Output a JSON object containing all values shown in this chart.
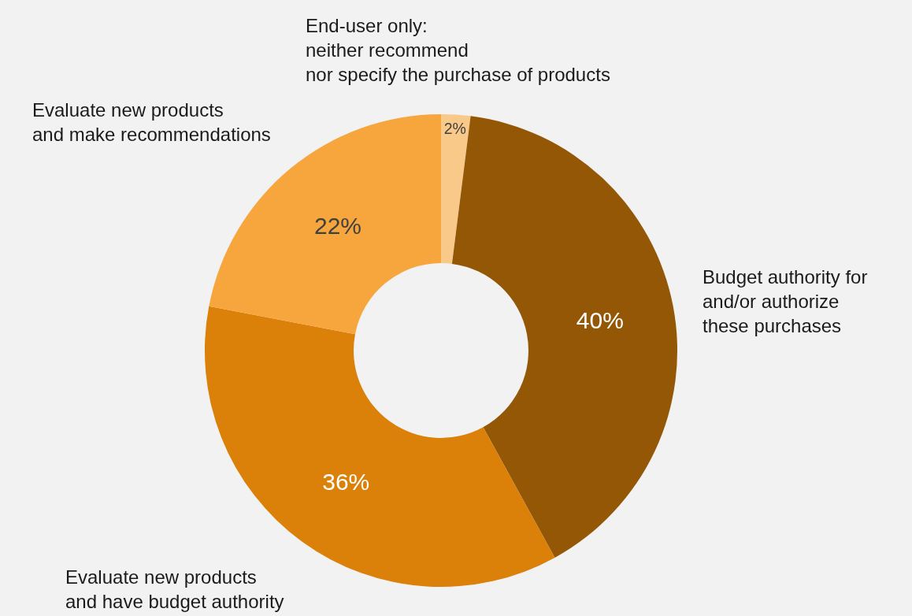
{
  "chart_data": {
    "type": "donut",
    "categories": [
      "End-user only:\nneither recommend\nnor specify the purchase of products",
      "Budget authority for\nand/or authorize\nthese purchases",
      "Evaluate new products\nand have budget authority",
      "Evaluate new products\nand make recommendations"
    ],
    "values": [
      2,
      40,
      36,
      22
    ],
    "value_labels": [
      "2%",
      "40%",
      "36%",
      "22%"
    ],
    "colors": [
      "#f9c98a",
      "#935706",
      "#db8009",
      "#f6a63c"
    ],
    "legend": false
  }
}
